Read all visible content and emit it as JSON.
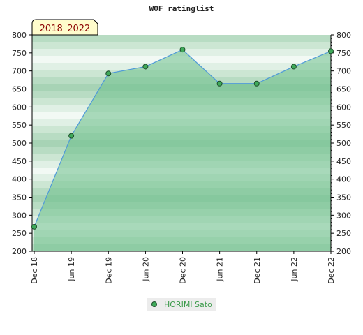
{
  "chart_data": {
    "type": "area",
    "title": "WOF ratinglist",
    "badge": "2018–2022",
    "categories": [
      "Dec 18",
      "Jun 19",
      "Dec 19",
      "Jun 20",
      "Dec 20",
      "Jun 21",
      "Dec 21",
      "Jun 22",
      "Dec 22"
    ],
    "series": [
      {
        "name": "HORIMI Sato",
        "values": [
          268,
          520,
          693,
          712,
          759,
          665,
          665,
          712,
          755
        ]
      }
    ],
    "ylim": [
      200,
      800
    ],
    "yticks": [
      200,
      250,
      300,
      350,
      400,
      450,
      500,
      550,
      600,
      650,
      700,
      750,
      800
    ],
    "grid": true,
    "legend_position": "bottom",
    "colors": {
      "line": "#4f9ad8",
      "fill": "#6cc08a",
      "marker": "#3faa5a",
      "badge_bg": "#fffccc",
      "badge_text": "#8b0000",
      "legend_text": "#3a9a4a"
    }
  }
}
